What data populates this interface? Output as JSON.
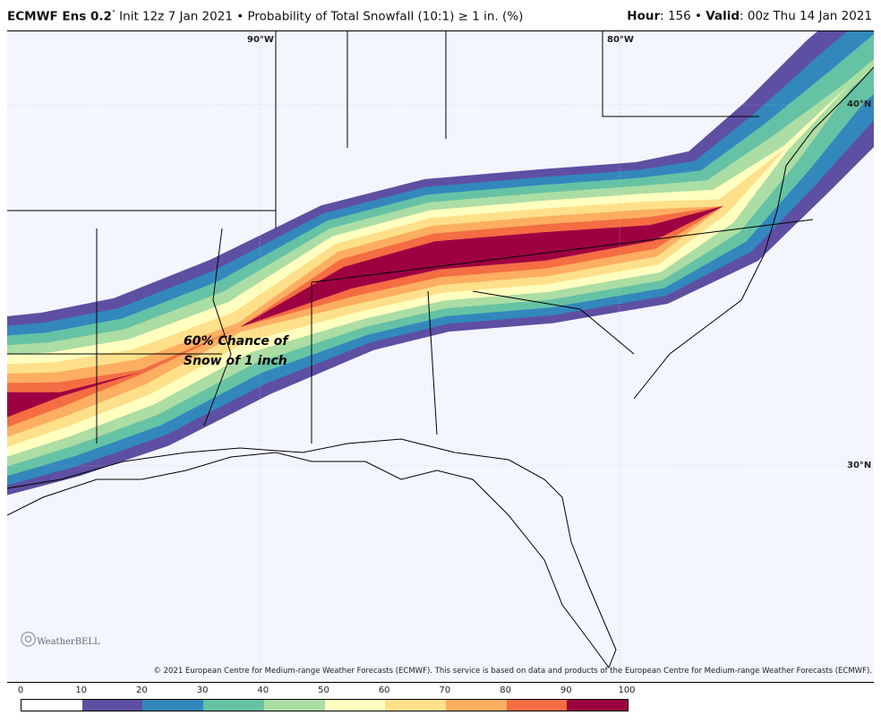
{
  "header": {
    "model": "ECMWF Ens 0.2",
    "deg": "°",
    "init": " Init 12z 7 Jan 2021",
    "product": " • Probability of Total Snowfall (10:1)  ≥  1 in. (%)",
    "hour_label": "Hour",
    "hour": ": 156 • ",
    "valid_label": "Valid",
    "valid": ": 00z Thu 14 Jan 2021"
  },
  "map": {
    "grid_labels": {
      "lon90": "90°W",
      "lon80": "80°W",
      "lat40": "40°N",
      "lat30": "30°N"
    },
    "annotation": [
      "60% Chance of",
      "Snow of 1 inch"
    ],
    "logo": "WeatherBELL",
    "copyright": "© 2021 European Centre for Medium-range Weather Forecasts (ECMWF). This service is based on data and products of the European Centre for Medium-range Weather Forecasts (ECMWF).",
    "background": "#f3f6fe"
  },
  "colorbar": {
    "ticks": [
      "0",
      "10",
      "20",
      "30",
      "40",
      "50",
      "60",
      "70",
      "80",
      "90",
      "100"
    ],
    "colors": [
      "#ffffff",
      "#5e4fa2",
      "#3288bd",
      "#66c2a5",
      "#abdda4",
      "#ffffbf",
      "#fee08b",
      "#fdae61",
      "#f46d43",
      "#9e0142"
    ]
  }
}
